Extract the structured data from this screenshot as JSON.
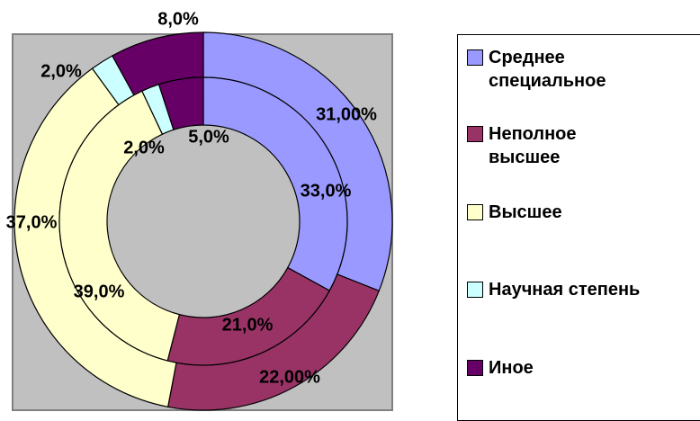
{
  "chart_data": {
    "type": "doughnut",
    "categories": [
      "Среднее специальное",
      "Неполное высшее",
      "Высшее",
      "Научная степень",
      "Иное"
    ],
    "colors": [
      "#9999ff",
      "#993366",
      "#ffffcc",
      "#ccffff",
      "#660066"
    ],
    "series": [
      {
        "values": [
          31,
          22,
          37,
          2,
          8
        ],
        "value_labels": [
          "31,00%",
          "22,00%",
          "37,0%",
          "2,0%",
          "8,0%"
        ]
      },
      {
        "values": [
          33,
          21,
          39,
          2,
          5
        ],
        "value_labels": [
          "33,0%",
          "21,0%",
          "39,0%",
          "2,0%",
          "5,0%"
        ]
      }
    ],
    "legend": "right"
  }
}
